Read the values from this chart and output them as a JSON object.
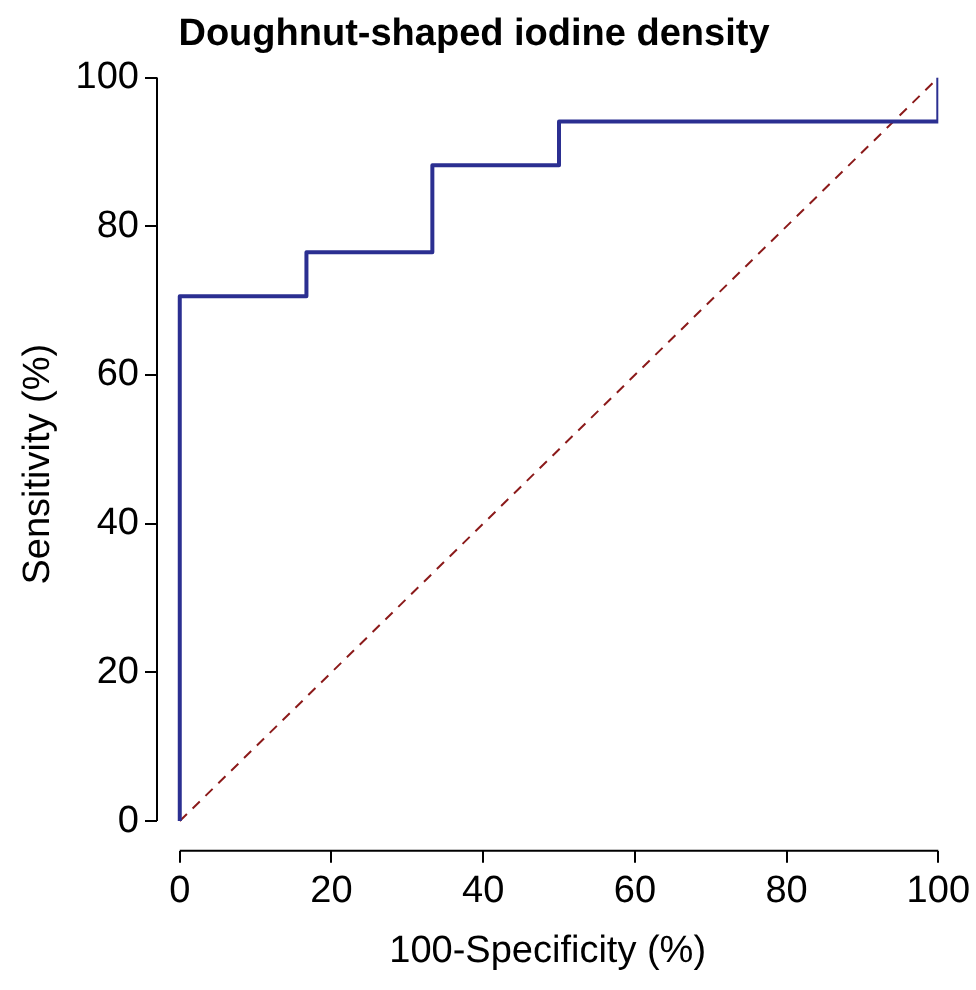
{
  "chart_data": {
    "type": "step",
    "title": "Doughnut-shaped iodine density",
    "xlabel": "100-Specificity (%)",
    "ylabel": "Sensitivity (%)",
    "series": [
      {
        "color": "#2b2f91",
        "x": [
          0,
          0,
          16.7,
          33.3,
          50,
          100
        ],
        "values": [
          0,
          70.6,
          76.5,
          88.2,
          94.1,
          100
        ]
      },
      {
        "type": "line",
        "color": "#8b1a1a",
        "line_style": "dashed",
        "x": [
          0,
          100
        ],
        "values": [
          0,
          100
        ]
      }
    ],
    "xlim": [
      -3,
      100
    ],
    "ylim": [
      -4,
      100
    ],
    "xticks": [
      0,
      20,
      40,
      60,
      80,
      100
    ],
    "yticks": [
      0,
      20,
      40,
      60,
      80,
      100
    ],
    "grid": false,
    "legend": false
  }
}
